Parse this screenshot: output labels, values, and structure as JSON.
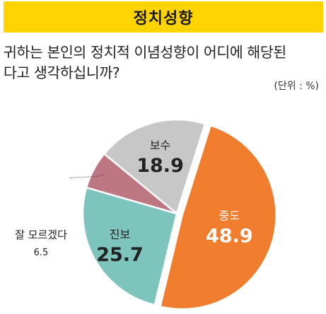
{
  "header": {
    "title": "정치성향"
  },
  "question": {
    "line1": "귀하는 본인의 정치적 이념성향이 어디에 해당된",
    "line2": "다고 생각하십니까?"
  },
  "unit_label": "(단위 : %)",
  "colors": {
    "banner": "#ffd400",
    "center": "#f07c2e",
    "progressive": "#7dc4bd",
    "dont_know": "#bd7783",
    "conservative": "#c7c7c7"
  },
  "chart_data": {
    "type": "pie",
    "slices": [
      {
        "label": "중도",
        "value": 48.9,
        "value_text": "48.9",
        "color": "#f07c2e",
        "exploded": true
      },
      {
        "label": "진보",
        "value": 25.7,
        "value_text": "25.7",
        "color": "#7dc4bd"
      },
      {
        "label": "잘 모르겠다",
        "value": 6.5,
        "value_text": "6.5",
        "color": "#bd7783"
      },
      {
        "label": "보수",
        "value": 18.9,
        "value_text": "18.9",
        "color": "#c7c7c7"
      }
    ]
  }
}
